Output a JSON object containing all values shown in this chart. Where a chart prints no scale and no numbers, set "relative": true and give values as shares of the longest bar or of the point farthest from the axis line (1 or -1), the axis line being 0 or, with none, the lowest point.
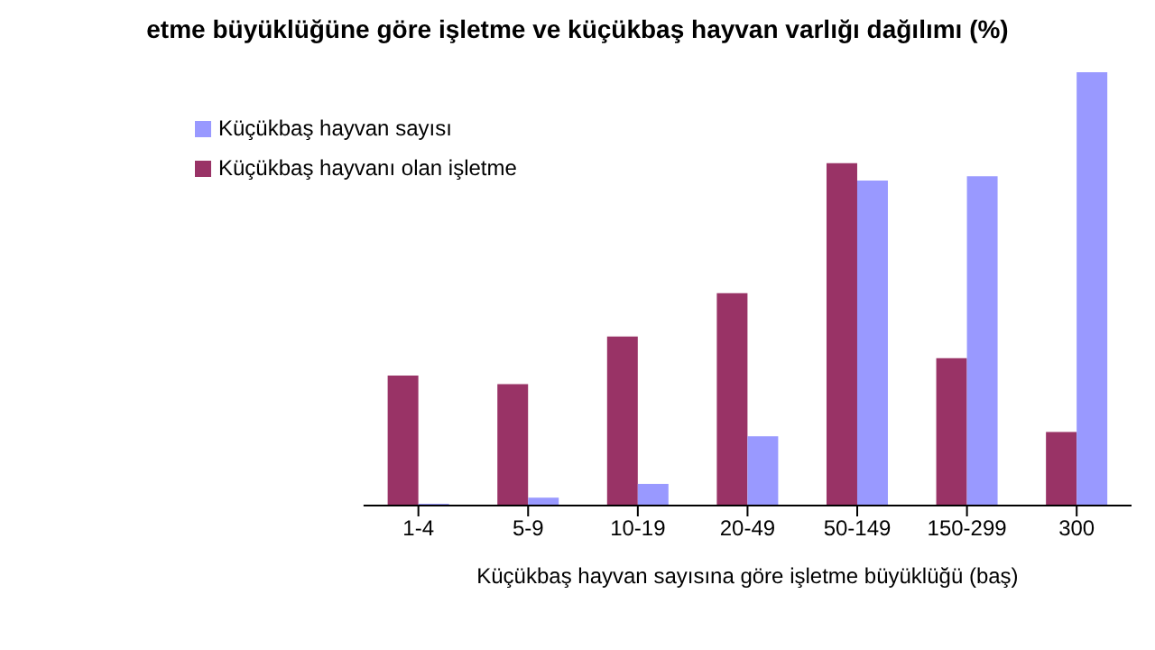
{
  "chart_data": {
    "type": "bar",
    "relative": true,
    "title": "etme büyüklüğüne göre işletme ve küçükbaş hayvan varlığı dağılımı (%)",
    "xlabel": "Küçükbaş hayvan sayısına göre işletme büyüklüğü (baş)",
    "categories": [
      "1-4",
      "5-9",
      "10-19",
      "20-49",
      "50-149",
      "150-299",
      "300"
    ],
    "series": [
      {
        "name": "Küçükbaş hayvanı olan işletme",
        "color": "#993366",
        "values": [
          0.3,
          0.28,
          0.39,
          0.49,
          0.79,
          0.34,
          0.17
        ]
      },
      {
        "name": "Küçükbaş hayvan sayısı",
        "color": "#9999ff",
        "values": [
          0.004,
          0.018,
          0.05,
          0.16,
          0.75,
          0.76,
          1
        ]
      }
    ],
    "legend": "top left",
    "grid": false
  }
}
